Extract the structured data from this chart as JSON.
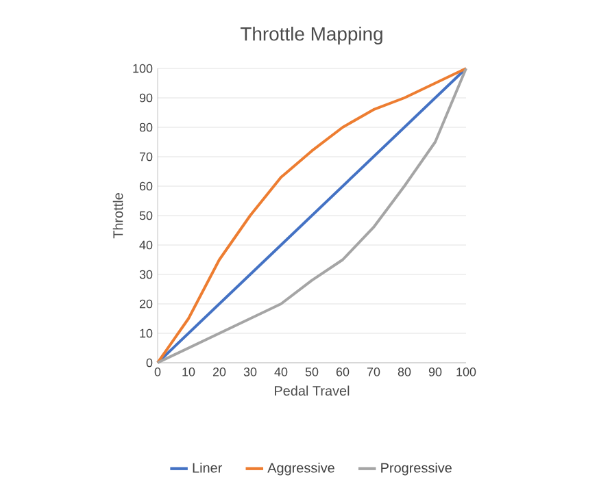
{
  "chart_data": {
    "type": "line",
    "title": "Throttle Mapping",
    "xlabel": "Pedal Travel",
    "ylabel": "Throttle",
    "categories": [
      "0",
      "10",
      "20",
      "30",
      "40",
      "50",
      "60",
      "70",
      "80",
      "90",
      "100"
    ],
    "series": [
      {
        "name": "Liner",
        "color": "#4472c4",
        "values": [
          0,
          10,
          20,
          30,
          40,
          50,
          60,
          70,
          80,
          90,
          100
        ]
      },
      {
        "name": "Aggressive",
        "color": "#ed7d31",
        "values": [
          0,
          15,
          35,
          50,
          63,
          72,
          80,
          86,
          90,
          95,
          100
        ]
      },
      {
        "name": "Progressive",
        "color": "#a5a5a5",
        "values": [
          0,
          5,
          10,
          15,
          20,
          28,
          35,
          46,
          60,
          75,
          100
        ]
      }
    ],
    "ylim": [
      0,
      100
    ],
    "yticks": [
      0,
      10,
      20,
      30,
      40,
      50,
      60,
      70,
      80,
      90,
      100
    ],
    "grid": "y",
    "legend": "bottom",
    "marker": "none",
    "line_style": "solid"
  }
}
